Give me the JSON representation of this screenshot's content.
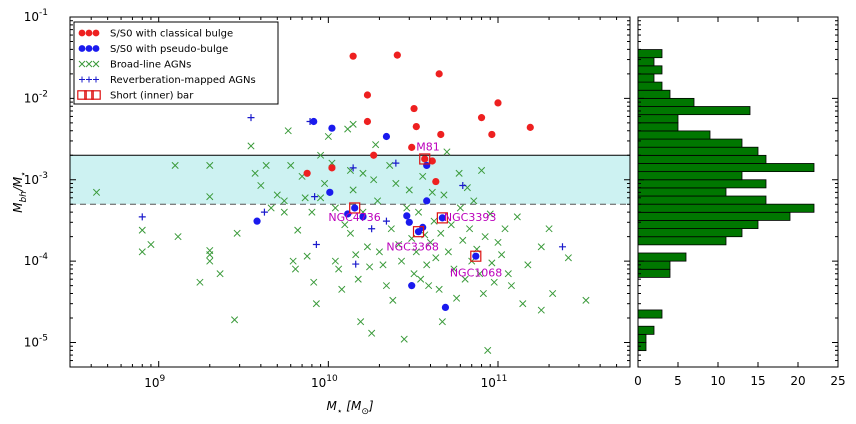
{
  "chart_data": {
    "type": "scatter",
    "xlabel": "$M_\\star\\,[M_\\odot]$",
    "ylabel": "$M_{\\rm bh}/M_\\star$",
    "xlabel_parts": {
      "base": "M",
      "sub": "⋆",
      "unit_open": "[M",
      "unit_sub": "⊙",
      "unit_close": "]"
    },
    "ylabel_parts": {
      "base": "M",
      "sub": "bh",
      "slash": "/M",
      "sub2": "⋆"
    },
    "xscale": "log",
    "yscale": "log",
    "xlim": [
      300000000.0,
      600000000000.0
    ],
    "ylim": [
      5e-06,
      0.1
    ],
    "x_tick_labels": [
      {
        "base": "10",
        "exp": "9",
        "value": 1000000000.0
      },
      {
        "base": "10",
        "exp": "10",
        "value": 10000000000.0
      },
      {
        "base": "10",
        "exp": "11",
        "value": 100000000000.0
      }
    ],
    "y_tick_labels": [
      {
        "base": "10",
        "exp": "-1",
        "value": 0.1
      },
      {
        "base": "10",
        "exp": "-2",
        "value": 0.01
      },
      {
        "base": "10",
        "exp": "-3",
        "value": 0.001
      },
      {
        "base": "10",
        "exp": "-4",
        "value": 0.0001
      },
      {
        "base": "10",
        "exp": "-5",
        "value": 1e-05
      }
    ],
    "band": {
      "ymin": 0.0005,
      "ymax": 0.002,
      "color": "#cdf2f2",
      "upper_line": "solid",
      "lower_line": "dashed"
    },
    "legend": {
      "placement": "top-left",
      "entries": [
        {
          "label": "S/S0 with classical bulge",
          "marker": "filled-circle",
          "color": "#ee2020"
        },
        {
          "label": "S/S0 with pseudo-bulge",
          "marker": "filled-circle",
          "color": "#1a1aee"
        },
        {
          "label": "Broad-line AGNs",
          "marker": "x",
          "color": "#3a9a3a"
        },
        {
          "label": "Reverberation-mapped AGNs",
          "marker": "plus",
          "color": "#1a1acc"
        },
        {
          "label": "Short (inner) bar",
          "marker": "open-square",
          "color": "#dd1111"
        }
      ]
    },
    "series": [
      {
        "name": "S/S0 with classical bulge",
        "marker": "circle",
        "color": "#ee2020",
        "points": [
          [
            14000000000.0,
            0.033
          ],
          [
            25500000000.0,
            0.034
          ],
          [
            45000000000.0,
            0.02
          ],
          [
            17000000000.0,
            0.011
          ],
          [
            32000000000.0,
            0.0075
          ],
          [
            100000000000.0,
            0.0088
          ],
          [
            80000000000.0,
            0.0058
          ],
          [
            17000000000.0,
            0.0052
          ],
          [
            33000000000.0,
            0.0045
          ],
          [
            155000000000.0,
            0.0044
          ],
          [
            92000000000.0,
            0.0036
          ],
          [
            46000000000.0,
            0.0036
          ],
          [
            31000000000.0,
            0.0025
          ],
          [
            18500000000.0,
            0.002
          ],
          [
            37000000000.0,
            0.0018
          ],
          [
            41000000000.0,
            0.0017
          ],
          [
            7500000000.0,
            0.0012
          ],
          [
            10500000000.0,
            0.0014
          ],
          [
            43000000000.0,
            0.00095
          ]
        ]
      },
      {
        "name": "S/S0 with pseudo-bulge",
        "marker": "circle",
        "color": "#1a1aee",
        "points": [
          [
            8200000000.0,
            0.0052
          ],
          [
            10500000000.0,
            0.0043
          ],
          [
            22000000000.0,
            0.0034
          ],
          [
            38000000000.0,
            0.0015
          ],
          [
            10200000000.0,
            0.0007
          ],
          [
            38000000000.0,
            0.00055
          ],
          [
            13000000000.0,
            0.00038
          ],
          [
            16000000000.0,
            0.00035
          ],
          [
            29000000000.0,
            0.00036
          ],
          [
            47000000000.0,
            0.00034
          ],
          [
            30000000000.0,
            0.0003
          ],
          [
            36000000000.0,
            0.00026
          ],
          [
            14300000000.0,
            0.00045
          ],
          [
            3800000000.0,
            0.00031
          ],
          [
            34000000000.0,
            0.00023
          ],
          [
            74000000000.0,
            0.000115
          ],
          [
            31000000000.0,
            5e-05
          ],
          [
            49000000000.0,
            2.7e-05
          ]
        ]
      },
      {
        "name": "Broad-line AGNs",
        "marker": "x",
        "color": "#3a9a3a",
        "points": [
          [
            430000000.0,
            0.0007
          ],
          [
            800000000.0,
            0.00024
          ],
          [
            800000000.0,
            0.00013
          ],
          [
            900000000.0,
            0.00016
          ],
          [
            1250000000.0,
            0.0015
          ],
          [
            1300000000.0,
            0.0002
          ],
          [
            1750000000.0,
            5.5e-05
          ],
          [
            2000000000.0,
            0.0015
          ],
          [
            2000000000.0,
            0.00062
          ],
          [
            2000000000.0,
            0.000135
          ],
          [
            2000000000.0,
            0.00012
          ],
          [
            2000000000.0,
            0.0001
          ],
          [
            2300000000.0,
            7e-05
          ],
          [
            2800000000.0,
            1.9e-05
          ],
          [
            2900000000.0,
            0.00022
          ],
          [
            3500000000.0,
            0.0026
          ],
          [
            3700000000.0,
            0.0012
          ],
          [
            4000000000.0,
            0.00085
          ],
          [
            4300000000.0,
            0.0015
          ],
          [
            4600000000.0,
            0.00045
          ],
          [
            5000000000.0,
            0.00065
          ],
          [
            5500000000.0,
            0.0004
          ],
          [
            5500000000.0,
            0.00055
          ],
          [
            5800000000.0,
            0.004
          ],
          [
            6000000000.0,
            0.0015
          ],
          [
            6200000000.0,
            0.0001
          ],
          [
            6400000000.0,
            8e-05
          ],
          [
            6600000000.0,
            0.00024
          ],
          [
            7000000000.0,
            0.0011
          ],
          [
            7300000000.0,
            0.0006
          ],
          [
            7500000000.0,
            0.000115
          ],
          [
            8000000000.0,
            0.0004
          ],
          [
            8200000000.0,
            5.5e-05
          ],
          [
            8500000000.0,
            3e-05
          ],
          [
            9000000000.0,
            0.002
          ],
          [
            9000000000.0,
            0.0006
          ],
          [
            9500000000.0,
            0.0009
          ],
          [
            10000000000.0,
            0.0034
          ],
          [
            10500000000.0,
            0.0016
          ],
          [
            11000000000.0,
            0.00045
          ],
          [
            11000000000.0,
            0.0001
          ],
          [
            11500000000.0,
            8e-05
          ],
          [
            12000000000.0,
            4.5e-05
          ],
          [
            12500000000.0,
            0.00028
          ],
          [
            13000000000.0,
            0.0042
          ],
          [
            13500000000.0,
            0.0013
          ],
          [
            13500000000.0,
            0.00022
          ],
          [
            14000000000.0,
            0.0048
          ],
          [
            14000000000.0,
            0.00075
          ],
          [
            14500000000.0,
            0.00012
          ],
          [
            15000000000.0,
            6e-05
          ],
          [
            15500000000.0,
            1.8e-05
          ],
          [
            16000000000.0,
            0.0012
          ],
          [
            16000000000.0,
            0.0004
          ],
          [
            17000000000.0,
            0.00015
          ],
          [
            17500000000.0,
            8.5e-05
          ],
          [
            18000000000.0,
            1.3e-05
          ],
          [
            18500000000.0,
            0.001
          ],
          [
            19000000000.0,
            0.0027
          ],
          [
            19500000000.0,
            0.00055
          ],
          [
            20000000000.0,
            0.00013
          ],
          [
            21000000000.0,
            9e-05
          ],
          [
            22000000000.0,
            5e-05
          ],
          [
            23000000000.0,
            0.0015
          ],
          [
            23500000000.0,
            0.00025
          ],
          [
            24000000000.0,
            3.3e-05
          ],
          [
            25000000000.0,
            0.0009
          ],
          [
            26000000000.0,
            0.00016
          ],
          [
            27000000000.0,
            0.0001
          ],
          [
            28000000000.0,
            1.1e-05
          ],
          [
            29000000000.0,
            0.00045
          ],
          [
            30000000000.0,
            0.00075
          ],
          [
            31000000000.0,
            0.00019
          ],
          [
            32000000000.0,
            7e-05
          ],
          [
            33000000000.0,
            0.00013
          ],
          [
            34000000000.0,
            0.0004
          ],
          [
            35000000000.0,
            6e-05
          ],
          [
            36000000000.0,
            0.0011
          ],
          [
            37000000000.0,
            0.00021
          ],
          [
            38000000000.0,
            9e-05
          ],
          [
            39000000000.0,
            5e-05
          ],
          [
            40000000000.0,
            0.00017
          ],
          [
            41000000000.0,
            0.0007
          ],
          [
            42000000000.0,
            0.00031
          ],
          [
            43000000000.0,
            0.00011
          ],
          [
            45000000000.0,
            4.5e-05
          ],
          [
            46000000000.0,
            0.00022
          ],
          [
            47000000000.0,
            1.8e-05
          ],
          [
            48000000000.0,
            0.00065
          ],
          [
            50000000000.0,
            0.0022
          ],
          [
            51000000000.0,
            0.00013
          ],
          [
            53000000000.0,
            0.00028
          ],
          [
            55000000000.0,
            8e-05
          ],
          [
            57000000000.0,
            3.5e-05
          ],
          [
            59000000000.0,
            0.0012
          ],
          [
            60000000000.0,
            0.00045
          ],
          [
            62000000000.0,
            0.00018
          ],
          [
            64000000000.0,
            6e-05
          ],
          [
            66000000000.0,
            0.0008
          ],
          [
            68000000000.0,
            0.00025
          ],
          [
            70000000000.0,
            0.0001
          ],
          [
            72000000000.0,
            0.00055
          ],
          [
            75000000000.0,
            0.00014
          ],
          [
            78000000000.0,
            7e-05
          ],
          [
            80000000000.0,
            0.0013
          ],
          [
            82000000000.0,
            4e-05
          ],
          [
            84000000000.0,
            0.0002
          ],
          [
            87000000000.0,
            8e-06
          ],
          [
            90000000000.0,
            0.00038
          ],
          [
            92000000000.0,
            9.5e-05
          ],
          [
            95000000000.0,
            5.5e-05
          ],
          [
            100000000000.0,
            0.00017
          ],
          [
            105000000000.0,
            0.00012
          ],
          [
            110000000000.0,
            0.00025
          ],
          [
            115000000000.0,
            7e-05
          ],
          [
            120000000000.0,
            5e-05
          ],
          [
            130000000000.0,
            0.00035
          ],
          [
            140000000000.0,
            3e-05
          ],
          [
            150000000000.0,
            9e-05
          ],
          [
            180000000000.0,
            0.00015
          ],
          [
            180000000000.0,
            2.5e-05
          ],
          [
            200000000000.0,
            0.00025
          ],
          [
            210000000000.0,
            4e-05
          ],
          [
            260000000000.0,
            0.00011
          ],
          [
            330000000000.0,
            3.3e-05
          ]
        ]
      },
      {
        "name": "Reverberation-mapped AGNs",
        "marker": "plus",
        "color": "#1a1acc",
        "points": [
          [
            800000000.0,
            0.00035
          ],
          [
            3500000000.0,
            0.0058
          ],
          [
            4200000000.0,
            0.0004
          ],
          [
            7800000000.0,
            0.0052
          ],
          [
            8300000000.0,
            0.00062
          ],
          [
            8500000000.0,
            0.00016
          ],
          [
            14000000000.0,
            0.0014
          ],
          [
            14500000000.0,
            9.2e-05
          ],
          [
            18000000000.0,
            0.00025
          ],
          [
            22000000000.0,
            0.00031
          ],
          [
            25000000000.0,
            0.0016
          ],
          [
            62000000000.0,
            0.00085
          ],
          [
            240000000000.0,
            0.00015
          ]
        ]
      },
      {
        "name": "Short (inner) bar",
        "marker": "open-square",
        "color": "#dd1111",
        "points": [
          [
            37000000000.0,
            0.0018
          ],
          [
            14300000000.0,
            0.00045
          ],
          [
            47000000000.0,
            0.00034
          ],
          [
            34000000000.0,
            0.00023
          ],
          [
            74000000000.0,
            0.000115
          ]
        ]
      }
    ],
    "annotations": [
      {
        "text": "M81",
        "x": 33000000000.0,
        "y": 0.0023
      },
      {
        "text": "NGC4736",
        "x": 10000000000.0,
        "y": 0.00031
      },
      {
        "text": "NGC3393",
        "x": 48000000000.0,
        "y": 0.00031
      },
      {
        "text": "NGC3368",
        "x": 22000000000.0,
        "y": 0.000135
      },
      {
        "text": "NGC1068",
        "x": 52000000000.0,
        "y": 6.5e-05
      }
    ],
    "histogram": {
      "type": "bar",
      "orientation": "horizontal",
      "color": "#007700",
      "xlim": [
        0,
        25
      ],
      "x_tick_labels": [
        "0",
        "5",
        "10",
        "15",
        "20",
        "25"
      ],
      "bin_log_edges_start": -5.1,
      "bin_width_dex": 0.1,
      "counts": [
        1,
        1,
        2,
        0,
        3,
        0,
        0,
        0,
        0,
        4,
        4,
        6,
        0,
        11,
        13,
        15,
        19,
        22,
        16,
        11,
        16,
        13,
        22,
        16,
        15,
        13,
        9,
        5,
        5,
        14,
        7,
        4,
        3,
        2,
        3,
        2,
        3
      ]
    }
  }
}
